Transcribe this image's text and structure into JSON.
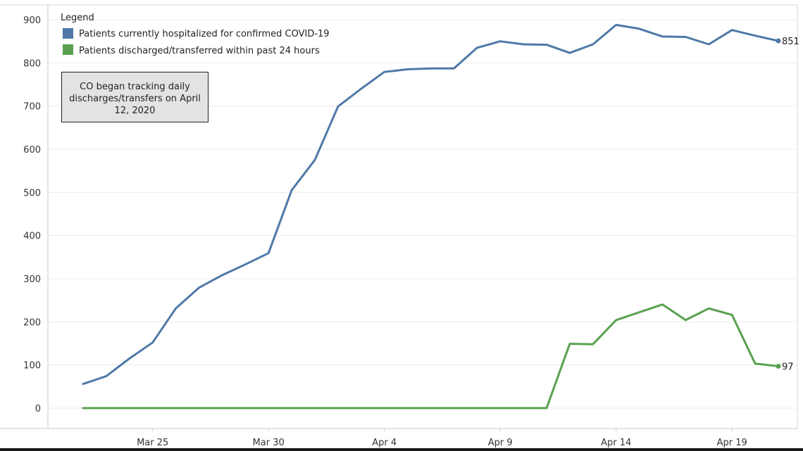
{
  "chart_data": {
    "type": "line",
    "title": "",
    "xlabel": "",
    "ylabel": "",
    "ylim": [
      0,
      900
    ],
    "y_ticks": [
      0,
      100,
      200,
      300,
      400,
      500,
      600,
      700,
      800,
      900
    ],
    "x_tick_labels": [
      "Mar 25",
      "Mar 30",
      "Apr 4",
      "Apr 9",
      "Apr 14",
      "Apr 19"
    ],
    "x_tick_dates": [
      "2020-03-25",
      "2020-03-30",
      "2020-04-04",
      "2020-04-09",
      "2020-04-14",
      "2020-04-19"
    ],
    "x": [
      "2020-03-22",
      "2020-03-23",
      "2020-03-24",
      "2020-03-25",
      "2020-03-26",
      "2020-03-27",
      "2020-03-28",
      "2020-03-29",
      "2020-03-30",
      "2020-03-31",
      "2020-04-01",
      "2020-04-02",
      "2020-04-03",
      "2020-04-04",
      "2020-04-05",
      "2020-04-06",
      "2020-04-07",
      "2020-04-08",
      "2020-04-09",
      "2020-04-10",
      "2020-04-11",
      "2020-04-12",
      "2020-04-13",
      "2020-04-14",
      "2020-04-15",
      "2020-04-16",
      "2020-04-17",
      "2020-04-18",
      "2020-04-19",
      "2020-04-20",
      "2020-04-21"
    ],
    "grid": "horizontal",
    "legend": {
      "title": "Legend",
      "position": "top-left"
    },
    "series": [
      {
        "name": "Patients currently hospitalized for confirmed COVID-19",
        "color": "#4e79a7",
        "values": [
          56,
          74,
          115,
          152,
          231,
          279,
          308,
          333,
          359,
          505,
          575,
          699,
          740,
          779,
          785,
          787,
          787,
          835,
          850,
          843,
          842,
          823,
          843,
          888,
          879,
          861,
          860,
          843,
          876,
          863,
          851
        ],
        "end_label": "851"
      },
      {
        "name": "Patients discharged/transferred within past 24 hours",
        "color": "#59a14f",
        "values": [
          0,
          0,
          0,
          0,
          0,
          0,
          0,
          0,
          0,
          0,
          0,
          0,
          0,
          0,
          0,
          0,
          0,
          0,
          0,
          0,
          0,
          149,
          148,
          204,
          222,
          240,
          204,
          231,
          216,
          103,
          97
        ],
        "end_label": "97"
      }
    ],
    "annotation": "CO began tracking daily discharges/transfers on April 12, 2020"
  }
}
